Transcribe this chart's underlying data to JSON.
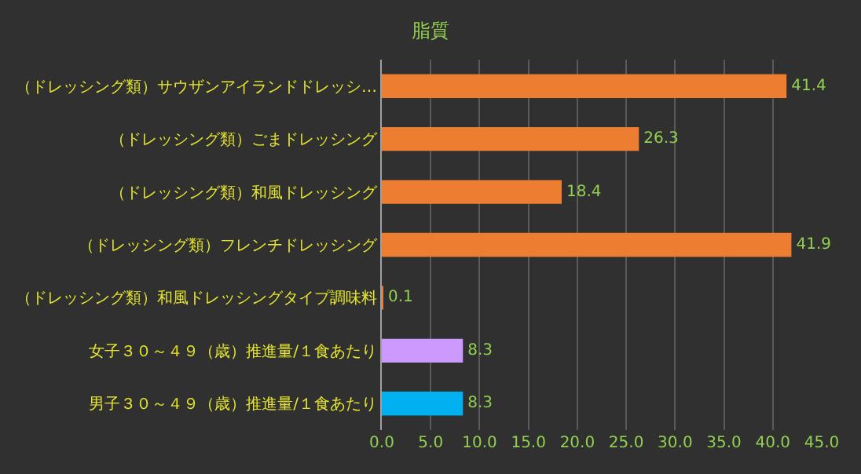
{
  "chart_data": {
    "type": "bar",
    "orientation": "horizontal",
    "title": "脂質",
    "categories": [
      "（ドレッシング類）サウザンアイランドドレッシ…",
      "（ドレッシング類）ごまドレッシング",
      "（ドレッシング類）和風ドレッシング",
      "（ドレッシング類）フレンチドレッシング",
      "（ドレッシング類）和風ドレッシングタイプ調味料",
      "女子３０～４９（歳）推進量/１食あたり",
      "男子３０～４９（歳）推進量/１食あたり"
    ],
    "values": [
      41.4,
      26.3,
      18.4,
      41.9,
      0.1,
      8.3,
      8.3
    ],
    "colors": [
      "#ed7d31",
      "#ed7d31",
      "#ed7d31",
      "#ed7d31",
      "#ed7d31",
      "#cc99ff",
      "#00b0f0"
    ],
    "xlim": [
      0,
      45
    ],
    "xticks": [
      {
        "value": 0,
        "label": "0.0"
      },
      {
        "value": 5,
        "label": "5.0"
      },
      {
        "value": 10,
        "label": "10.0"
      },
      {
        "value": 15,
        "label": "15.0"
      },
      {
        "value": 20,
        "label": "20.0"
      },
      {
        "value": 25,
        "label": "25.0"
      },
      {
        "value": 30,
        "label": "30.0"
      },
      {
        "value": 35,
        "label": "35.0"
      },
      {
        "value": 40,
        "label": "40.0"
      },
      {
        "value": 45,
        "label": "45.0"
      }
    ],
    "grid": "x",
    "data_labels": true
  }
}
